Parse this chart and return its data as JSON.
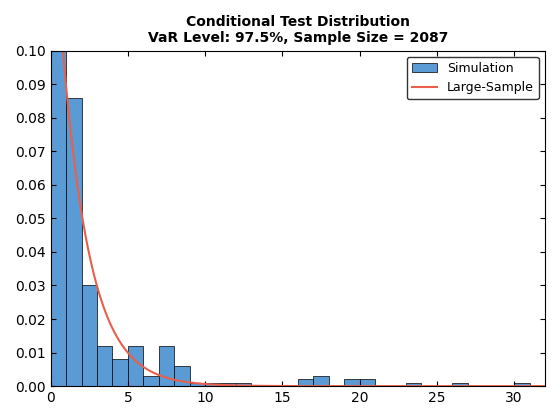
{
  "title_line1": "Conditional Test Distribution",
  "title_line2": "VaR Level: 97.5%, Sample Size = 2087",
  "bar_color": "#5b9bd5",
  "bar_edge_color": "#000000",
  "line_color": "#e8604c",
  "xlim": [
    0,
    32
  ],
  "ylim": [
    0,
    0.1
  ],
  "yticks": [
    0,
    0.01,
    0.02,
    0.03,
    0.04,
    0.05,
    0.06,
    0.07,
    0.08,
    0.09,
    0.1
  ],
  "xticks": [
    0,
    5,
    10,
    15,
    20,
    25,
    30
  ],
  "legend_labels": [
    "Simulation",
    "Large-Sample"
  ],
  "bar_left_edges": [
    0.0,
    1.0,
    2.0,
    3.0,
    4.0,
    5.0,
    6.0,
    7.0,
    8.0,
    9.0,
    10.0,
    11.0,
    12.0,
    13.0,
    14.0,
    15.0,
    16.0,
    17.0,
    18.0,
    19.0,
    20.0,
    21.0,
    22.0,
    23.0,
    24.0,
    25.0,
    26.0,
    27.0,
    28.0,
    29.0,
    30.0
  ],
  "bar_heights": [
    0.1,
    0.086,
    0.03,
    0.012,
    0.008,
    0.012,
    0.003,
    0.012,
    0.006,
    0.001,
    0.001,
    0.001,
    0.001,
    0.0,
    0.0,
    0.0,
    0.002,
    0.003,
    0.0,
    0.002,
    0.002,
    0.0,
    0.0,
    0.001,
    0.0,
    0.0,
    0.001,
    0.0,
    0.0,
    0.0,
    0.001
  ],
  "exp_a": 0.155,
  "exp_b": 0.549,
  "title_fontsize": 10,
  "legend_fontsize": 9,
  "bar_linewidth": 0.5
}
